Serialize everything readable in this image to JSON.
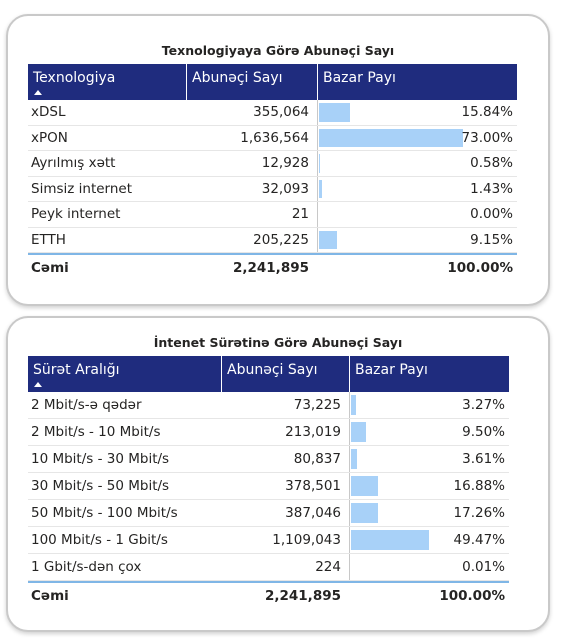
{
  "technology_table": {
    "title": "Texnologiyaya Görə Abunəçi Sayı",
    "headers": [
      "Texnologiya",
      "Abunəçi Sayı",
      "Bazar Payı"
    ],
    "rows": [
      {
        "name": "xDSL",
        "count": "355,064",
        "share_text": "15.84%",
        "share": 15.84
      },
      {
        "name": "xPON",
        "count": "1,636,564",
        "share_text": "73.00%",
        "share": 73.0
      },
      {
        "name": "Ayrılmış xətt",
        "count": "12,928",
        "share_text": "0.58%",
        "share": 0.58
      },
      {
        "name": "Simsiz internet",
        "count": "32,093",
        "share_text": "1.43%",
        "share": 1.43
      },
      {
        "name": "Peyk internet",
        "count": "21",
        "share_text": "0.00%",
        "share": 0.0
      },
      {
        "name": "ETTH",
        "count": "205,225",
        "share_text": "9.15%",
        "share": 9.15
      }
    ],
    "total": {
      "label": "Cəmi",
      "count": "2,241,895",
      "share_text": "100.00%"
    }
  },
  "speed_table": {
    "title": "İntenet Sürətinə Görə Abunəçi Sayı",
    "headers": [
      "Sürət Aralığı",
      "Abunəçi Sayı",
      "Bazar Payı"
    ],
    "rows": [
      {
        "name": "2 Mbit/s-ə qədər",
        "count": "73,225",
        "share_text": "3.27%",
        "share": 3.27
      },
      {
        "name": "2 Mbit/s - 10 Mbit/s",
        "count": "213,019",
        "share_text": "9.50%",
        "share": 9.5
      },
      {
        "name": "10 Mbit/s - 30 Mbit/s",
        "count": "80,837",
        "share_text": "3.61%",
        "share": 3.61
      },
      {
        "name": "30 Mbit/s - 50 Mbit/s",
        "count": "378,501",
        "share_text": "16.88%",
        "share": 16.88
      },
      {
        "name": "50 Mbit/s - 100 Mbit/s",
        "count": "387,046",
        "share_text": "17.26%",
        "share": 17.26
      },
      {
        "name": "100 Mbit/s - 1 Gbit/s",
        "count": "1,109,043",
        "share_text": "49.47%",
        "share": 49.47
      },
      {
        "name": "1 Gbit/s-dən çox",
        "count": "224",
        "share_text": "0.01%",
        "share": 0.01
      }
    ],
    "total": {
      "label": "Cəmi",
      "count": "2,241,895",
      "share_text": "100.00%"
    }
  },
  "colors": {
    "header_bg": "#1f2c7e",
    "bar": "#a8d1f8",
    "total_rule": "#7fb6e6"
  },
  "icons": {
    "sort": "sort-ascending-icon"
  }
}
